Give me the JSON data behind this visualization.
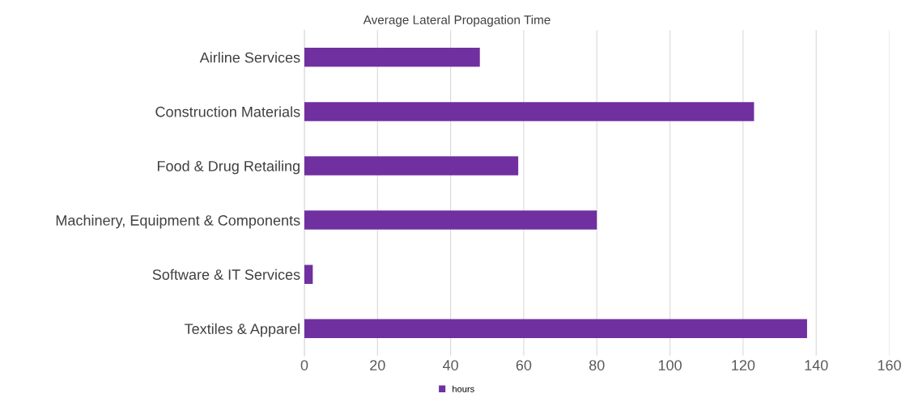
{
  "chart_data": {
    "type": "bar",
    "orientation": "horizontal",
    "title": "Average Lateral Propagation Time",
    "categories": [
      "Airline Services",
      "Construction Materials",
      "Food & Drug Retailing",
      "Machinery, Equipment & Components",
      "Software & IT Services",
      "Textiles & Apparel"
    ],
    "series": [
      {
        "name": "hours",
        "color": "#7030a0",
        "values": [
          48,
          123,
          58.5,
          80,
          2.3,
          137.5
        ]
      }
    ],
    "xlim": [
      0,
      160
    ],
    "xticks": [
      0,
      20,
      40,
      60,
      80,
      100,
      120,
      140,
      160
    ],
    "grid": "x",
    "legend": "bottom"
  }
}
